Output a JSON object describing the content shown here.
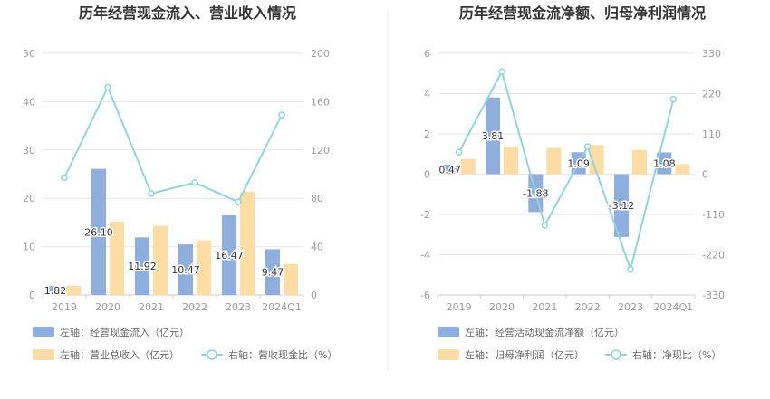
{
  "colors": {
    "bar_primary": "#8eaedd",
    "bar_secondary": "#fedda4",
    "line": "#8fd5da",
    "grid": "#e6e6e6",
    "axis": "#999999",
    "text": "#333333"
  },
  "chart_data": [
    {
      "type": "bar",
      "title": "历年经营现金流入、营业收入情况",
      "categories": [
        "2019",
        "2020",
        "2021",
        "2022",
        "2023",
        "2024Q1"
      ],
      "left_axis": {
        "ticks": [
          "0",
          "10",
          "20",
          "30",
          "40",
          "50"
        ],
        "ylim": [
          0,
          50
        ]
      },
      "right_axis": {
        "ticks": [
          "0",
          "40",
          "80",
          "120",
          "160",
          "200"
        ],
        "ylim": [
          0,
          200
        ]
      },
      "series": [
        {
          "name": "左轴：经营现金流入（亿元）",
          "kind": "bar",
          "axis": "left",
          "values": [
            1.82,
            26.1,
            11.92,
            10.47,
            16.47,
            9.47
          ],
          "labels": [
            "1.82",
            "26.10",
            "11.92",
            "10.47",
            "16.47",
            "9.47"
          ]
        },
        {
          "name": "左轴：营业总收入（亿元）",
          "kind": "bar",
          "axis": "left",
          "values": [
            1.9,
            15.2,
            14.3,
            11.3,
            21.4,
            6.4
          ]
        },
        {
          "name": "右轴：营收现金比（%）",
          "kind": "line",
          "axis": "right",
          "values": [
            97,
            172,
            84,
            93,
            77,
            149
          ]
        }
      ],
      "legend_position": "bottom"
    },
    {
      "type": "bar",
      "title": "历年经营现金流净额、归母净利润情况",
      "categories": [
        "2019",
        "2020",
        "2021",
        "2022",
        "2023",
        "2024Q1"
      ],
      "left_axis": {
        "ticks": [
          "-6",
          "-4",
          "-2",
          "0",
          "2",
          "4",
          "6"
        ],
        "ylim": [
          -6,
          6
        ]
      },
      "right_axis": {
        "ticks": [
          "-330",
          "-220",
          "-110",
          "0",
          "110",
          "220",
          "330"
        ],
        "ylim": [
          -330,
          330
        ]
      },
      "series": [
        {
          "name": "左轴：经营活动现金流净额（亿元）",
          "kind": "bar",
          "axis": "left",
          "values": [
            0.47,
            3.81,
            -1.88,
            1.09,
            -3.12,
            1.08
          ],
          "labels": [
            "0.47",
            "3.81",
            "-1.88",
            "1.09",
            "-3.12",
            "1.08"
          ]
        },
        {
          "name": "左轴：归母净利润（亿元）",
          "kind": "bar",
          "axis": "left",
          "values": [
            0.75,
            1.35,
            1.3,
            1.45,
            1.2,
            0.5
          ]
        },
        {
          "name": "右轴：净现比（%）",
          "kind": "line",
          "axis": "right",
          "values": [
            60,
            280,
            -140,
            75,
            -260,
            205
          ]
        }
      ],
      "legend_position": "bottom"
    }
  ]
}
